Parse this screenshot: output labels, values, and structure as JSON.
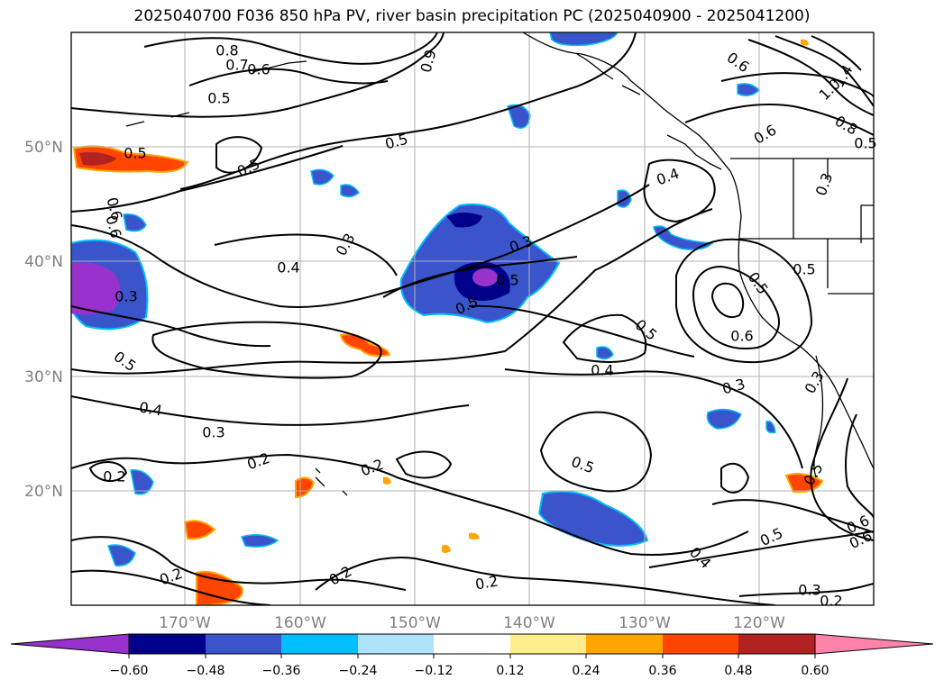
{
  "title": "2025040700 F036 850 hPa PV, river basin precipitation PC (2025040900 - 2025041200)",
  "axes": {
    "lat_ticks": [
      "50°N",
      "40°N",
      "30°N",
      "20°N"
    ],
    "lon_ticks": [
      "170°W",
      "160°W",
      "150°W",
      "140°W",
      "130°W",
      "120°W"
    ],
    "label_color": "#808080"
  },
  "colorbar": {
    "tick_labels": [
      "−0.60",
      "−0.48",
      "−0.36",
      "−0.24",
      "−0.12",
      "0.12",
      "0.24",
      "0.36",
      "0.48",
      "0.60"
    ],
    "colors": [
      "#9932cc",
      "#00008b",
      "#3a55cc",
      "#00bfff",
      "#aee2fa",
      "#ffffff",
      "#ffec8b",
      "#ffa500",
      "#ff4500",
      "#b22222",
      "#ff82ab"
    ]
  },
  "contour_labels": [
    "0.8",
    "0.7",
    "0.6",
    "0.5",
    "0.9",
    "0.6",
    "1.4",
    "1.0",
    "0.8",
    "0.5",
    "0.6",
    "0.5",
    "0.5",
    "0.4",
    "0.5",
    "0.3",
    "0.6",
    "0.3",
    "0.4",
    "0.3",
    "0.5",
    "0.5",
    "0.5",
    "0.5",
    "0.3",
    "0.5",
    "0.6",
    "0.5",
    "0.4",
    "0.3",
    "0.4",
    "0.3",
    "0.3",
    "0.2",
    "0.2",
    "0.2",
    "0.5",
    "0.5",
    "0.2",
    "0.6",
    "0.2",
    "0.2",
    "0.4",
    "0.5",
    "0.6",
    "0.3",
    "0.2",
    "0.6"
  ]
}
